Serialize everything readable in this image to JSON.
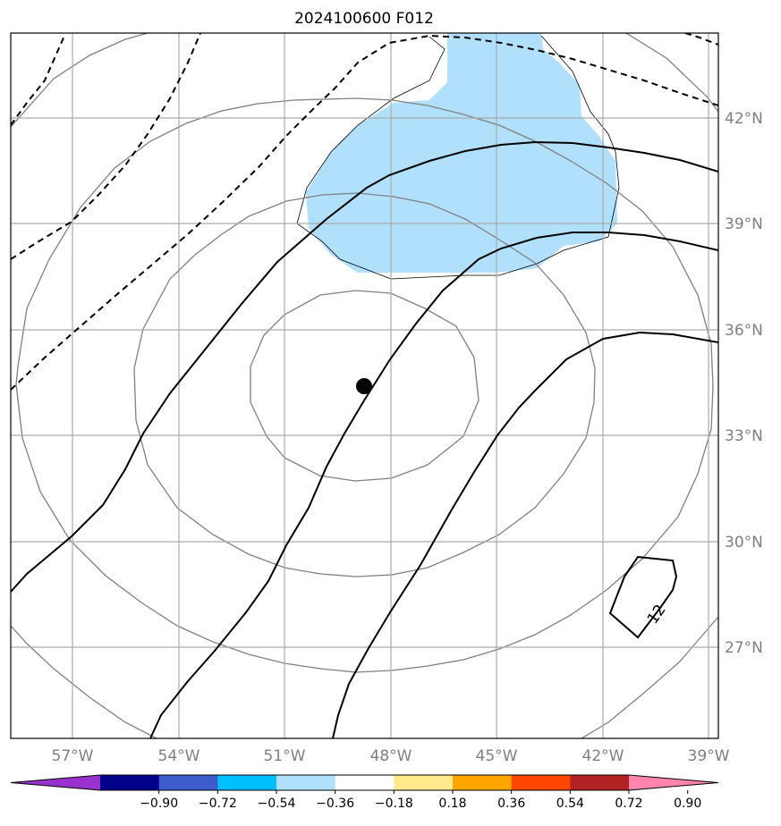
{
  "title": "2024100600 F012",
  "map": {
    "lon_ticks": [
      "57°W",
      "54°W",
      "51°W",
      "48°W",
      "45°W",
      "42°W",
      "39°W"
    ],
    "lat_ticks": [
      "42°N",
      "39°N",
      "36°N",
      "33°N",
      "30°N",
      "27°N"
    ],
    "center_marker": "storm-center-dot",
    "contour_label": "12",
    "colors": {
      "grid": "#aaaaaa",
      "shade": "#b0e0fb",
      "ring": "#808080",
      "contour": "#000000"
    }
  },
  "colorbar": {
    "levels": [
      "−0.90",
      "−0.72",
      "−0.54",
      "−0.36",
      "−0.18",
      "0.18",
      "0.36",
      "0.54",
      "0.72",
      "0.90"
    ],
    "colors": [
      "#9932cc",
      "#00008b",
      "#3d5ccc",
      "#00bfff",
      "#b0e0fb",
      "#ffffff",
      "#ffe98a",
      "#ffa500",
      "#ff4500",
      "#b22222",
      "#ff85ad"
    ]
  }
}
